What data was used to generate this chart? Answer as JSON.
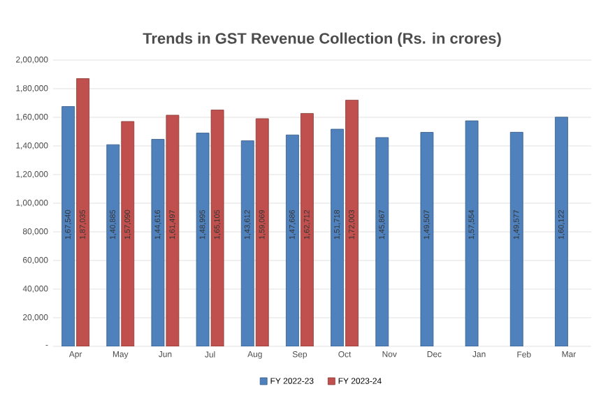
{
  "chart_data": {
    "type": "bar",
    "title": "Trends in GST Revenue Collection (Rs. in crores)",
    "categories": [
      "Apr",
      "May",
      "Jun",
      "Jul",
      "Aug",
      "Sep",
      "Oct",
      "Nov",
      "Dec",
      "Jan",
      "Feb",
      "Mar"
    ],
    "series": [
      {
        "name": "FY 2022-23",
        "color": "#4f81bd",
        "values": [
          167540,
          140885,
          144616,
          148995,
          143612,
          147686,
          151718,
          145867,
          149507,
          157554,
          149577,
          160122
        ],
        "value_labels": [
          "1,67,540",
          "1,40,885",
          "1,44,616",
          "1,48,995",
          "1,43,612",
          "1,47,686",
          "1,51,718",
          "1,45,867",
          "1,49,507",
          "1,57,554",
          "1,49,577",
          "1,60,122"
        ]
      },
      {
        "name": "FY 2023-24",
        "color": "#c0504d",
        "values": [
          187035,
          157090,
          161497,
          165105,
          159069,
          162712,
          172003,
          null,
          null,
          null,
          null,
          null
        ],
        "value_labels": [
          "1,87,035",
          "1,57,090",
          "1,61,497",
          "1,65,105",
          "1,59,069",
          "1,62,712",
          "1,72,003",
          null,
          null,
          null,
          null,
          null
        ]
      }
    ],
    "ylim": [
      0,
      200000
    ],
    "yticks": [
      {
        "value": 0,
        "label": "-"
      },
      {
        "value": 20000,
        "label": "20,000"
      },
      {
        "value": 40000,
        "label": "40,000"
      },
      {
        "value": 60000,
        "label": "60,000"
      },
      {
        "value": 80000,
        "label": "80,000"
      },
      {
        "value": 100000,
        "label": "1,00,000"
      },
      {
        "value": 120000,
        "label": "1,20,000"
      },
      {
        "value": 140000,
        "label": "1,40,000"
      },
      {
        "value": 160000,
        "label": "1,60,000"
      },
      {
        "value": 180000,
        "label": "1,80,000"
      },
      {
        "value": 200000,
        "label": "2,00,000"
      }
    ],
    "grid": "y",
    "legend": "bottom"
  }
}
